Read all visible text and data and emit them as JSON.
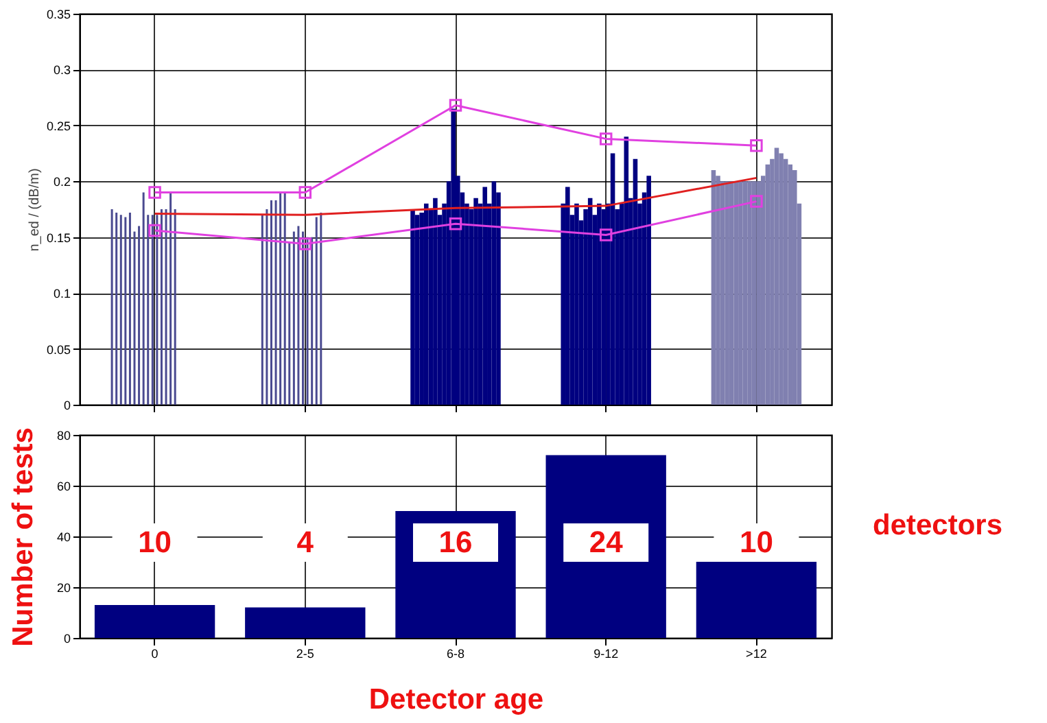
{
  "chart_data": [
    {
      "type": "bar",
      "ylabel": "n_ed / (dB/m)",
      "categories": [
        null,
        null,
        null,
        null,
        null
      ],
      "ylim": [
        0,
        0.35
      ],
      "yticks": [
        0,
        0.05,
        0.1,
        0.15,
        0.2,
        0.25,
        0.3,
        0.35
      ],
      "grid": true,
      "series": [
        {
          "type": "bar",
          "colors": [
            "#4a4a90",
            "#4a4a90",
            "#000080",
            "#000080",
            "#8080b0"
          ],
          "values": [
            0.175,
            0.17,
            0.175,
            0.18,
            0.21
          ]
        },
        {
          "type": "bar",
          "colors": [
            "#4a4a90",
            "#4a4a90",
            "#000080",
            "#000080",
            "#8080b0"
          ],
          "values": [
            0.172,
            0.175,
            0.17,
            0.195,
            0.205
          ]
        },
        {
          "type": "bar",
          "colors": [
            "#4a4a90",
            "#4a4a90",
            "#000080",
            "#000080",
            "#8080b0"
          ],
          "values": [
            0.17,
            0.183,
            0.172,
            0.17,
            0.2
          ]
        },
        {
          "type": "bar",
          "colors": [
            "#4a4a90",
            "#4a4a90",
            "#000080",
            "#000080",
            "#8080b0"
          ],
          "values": [
            0.168,
            0.183,
            0.18,
            0.18,
            0.2
          ]
        },
        {
          "type": "bar",
          "colors": [
            "#4a4a90",
            "#4a4a90",
            "#000080",
            "#000080",
            "#8080b0"
          ],
          "values": [
            0.172,
            0.19,
            0.175,
            0.165,
            0.2
          ]
        },
        {
          "type": "bar",
          "colors": [
            "#4a4a90",
            "#4a4a90",
            "#000080",
            "#000080",
            "#8080b0"
          ],
          "values": [
            0.155,
            0.19,
            0.185,
            0.175,
            0.2
          ]
        },
        {
          "type": "bar",
          "colors": [
            "#4a4a90",
            "#4a4a90",
            "#000080",
            "#000080",
            "#8080b0"
          ],
          "values": [
            0.16,
            0.145,
            0.17,
            0.185,
            0.2
          ]
        },
        {
          "type": "bar",
          "colors": [
            "#4a4a90",
            "#4a4a90",
            "#000080",
            "#000080",
            "#8080b0"
          ],
          "values": [
            0.19,
            0.155,
            0.18,
            0.17,
            0.2
          ]
        },
        {
          "type": "bar",
          "colors": [
            "#4a4a90",
            "#4a4a90",
            "#000080",
            "#000080",
            "#8080b0"
          ],
          "values": [
            0.17,
            0.16,
            0.2,
            0.18,
            0.2
          ]
        },
        {
          "type": "bar",
          "colors": [
            "#4a4a90",
            "#4a4a90",
            "#000080",
            "#000080",
            "#8080b0"
          ],
          "values": [
            0.17,
            0.155,
            0.265,
            0.175,
            0.2
          ]
        },
        {
          "type": "bar",
          "colors": [
            "#4a4a90",
            "#4a4a90",
            "#000080",
            "#000080",
            "#8080b0"
          ],
          "values": [
            0.17,
            0.15,
            0.205,
            0.18,
            0.2
          ]
        },
        {
          "type": "bar",
          "colors": [
            "#4a4a90",
            "#4a4a90",
            "#000080",
            "#000080",
            "#8080b0"
          ],
          "values": [
            0.175,
            0.15,
            0.19,
            0.225,
            0.205
          ]
        },
        {
          "type": "bar",
          "colors": [
            "#4a4a90",
            "#4a4a90",
            "#000080",
            "#000080",
            "#8080b0"
          ],
          "values": [
            0.175,
            0.168,
            0.18,
            0.175,
            0.215
          ]
        },
        {
          "type": "bar",
          "colors": [
            "#4a4a90",
            "#4a4a90",
            "#000080",
            "#000080",
            "#8080b0"
          ],
          "values": [
            0.19,
            0.172,
            0.175,
            0.18,
            0.22
          ]
        },
        {
          "type": "bar",
          "colors": [
            "#4a4a90",
            "#4a4a90",
            "#000080",
            "#000080",
            "#8080b0"
          ],
          "values": [
            0.175,
            null,
            0.185,
            0.24,
            0.23
          ]
        },
        {
          "type": "bar",
          "colors": [
            "#4a4a90",
            "#4a4a90",
            "#000080",
            "#000080",
            "#8080b0"
          ],
          "values": [
            null,
            null,
            0.18,
            0.185,
            0.225
          ]
        },
        {
          "type": "bar",
          "colors": [
            "#4a4a90",
            "#4a4a90",
            "#000080",
            "#000080",
            "#8080b0"
          ],
          "values": [
            null,
            null,
            0.195,
            0.22,
            0.22
          ]
        },
        {
          "type": "bar",
          "colors": [
            "#4a4a90",
            "#4a4a90",
            "#000080",
            "#000080",
            "#8080b0"
          ],
          "values": [
            null,
            null,
            0.18,
            0.18,
            0.215
          ]
        },
        {
          "type": "bar",
          "colors": [
            "#4a4a90",
            "#4a4a90",
            "#000080",
            "#000080",
            "#8080b0"
          ],
          "values": [
            null,
            null,
            0.2,
            0.19,
            0.21
          ]
        },
        {
          "type": "bar",
          "colors": [
            "#4a4a90",
            "#4a4a90",
            "#000080",
            "#000080",
            "#8080b0"
          ],
          "values": [
            null,
            null,
            0.19,
            0.205,
            0.18
          ]
        },
        {
          "type": "line",
          "color": "#e040e0",
          "marker": "square",
          "values": [
            0.19,
            0.19,
            0.268,
            0.238,
            0.232
          ]
        },
        {
          "type": "line",
          "color": "#e02020",
          "marker": "none",
          "values": [
            0.171,
            0.17,
            0.176,
            0.178,
            0.203
          ]
        },
        {
          "type": "line",
          "color": "#e040e0",
          "marker": "square",
          "values": [
            0.156,
            0.144,
            0.162,
            0.152,
            0.182
          ]
        }
      ]
    },
    {
      "type": "bar",
      "categories": [
        "0",
        "2-5",
        "6-8",
        "9-12",
        ">12"
      ],
      "values": [
        13,
        12,
        50,
        72,
        30
      ],
      "color": "#000080",
      "ylabel": "Number of tests",
      "xlabel": "Detector age",
      "ylim": [
        0,
        80
      ],
      "yticks": [
        0,
        20,
        40,
        60,
        80
      ],
      "grid": true,
      "annotations": [
        "10",
        "4",
        "16",
        "24",
        "10",
        "detectors"
      ]
    }
  ]
}
